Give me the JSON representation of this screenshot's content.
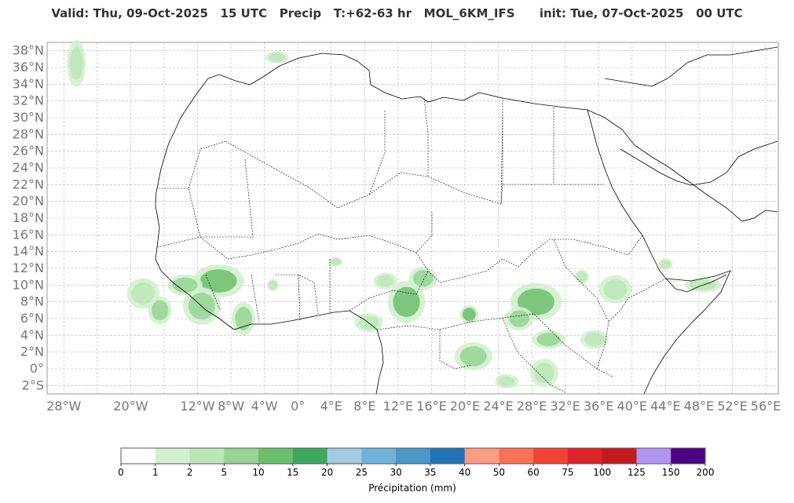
{
  "title": "Valid: Thu, 09-Oct-2025   15 UTC   Precip   T:+62-63 hr   MOL_6KM_IFS      init: Tue, 07-Oct-2025   00 UTC",
  "map": {
    "lat_labels": [
      "38°N",
      "36°N",
      "34°N",
      "32°N",
      "30°N",
      "28°N",
      "26°N",
      "24°N",
      "22°N",
      "20°N",
      "18°N",
      "16°N",
      "14°N",
      "12°N",
      "10°N",
      "8°N",
      "6°N",
      "4°N",
      "2°N",
      "0°",
      "2°S"
    ],
    "lon_labels": [
      "28°W",
      "20°W",
      "12°W",
      "8°W",
      "4°W",
      "0°",
      "4°E",
      "8°E",
      "12°E",
      "16°E",
      "20°E",
      "24°E",
      "28°E",
      "32°E",
      "36°E",
      "40°E",
      "44°E",
      "48°E",
      "52°E",
      "56°E"
    ],
    "lat_values": [
      38,
      36,
      34,
      32,
      30,
      28,
      26,
      24,
      22,
      20,
      18,
      16,
      14,
      12,
      10,
      8,
      6,
      4,
      2,
      0,
      -2
    ],
    "lon_values": [
      -28,
      -20,
      -12,
      -8,
      -4,
      0,
      4,
      8,
      12,
      16,
      20,
      24,
      28,
      32,
      36,
      40,
      44,
      48,
      52,
      56
    ],
    "extent": {
      "lon_min": -30,
      "lon_max": 57.5,
      "lat_min": -3,
      "lat_max": 39
    },
    "grid": true
  },
  "colorbar": {
    "label": "Précipitation (mm)",
    "ticks": [
      "0",
      "1",
      "2",
      "5",
      "10",
      "15",
      "20",
      "25",
      "30",
      "35",
      "40",
      "50",
      "60",
      "75",
      "100",
      "125",
      "150",
      "200"
    ],
    "colors": [
      "#ffffff",
      "#d2f0ce",
      "#bde6b7",
      "#98d493",
      "#6cbf6d",
      "#3fa75e",
      "#a2cbe3",
      "#72b1d8",
      "#4a97c8",
      "#2372b6",
      "#fc9c82",
      "#fa7356",
      "#f14435",
      "#d9252a",
      "#c01b1f",
      "#b093f2",
      "#4c0083"
    ]
  },
  "legend_levels": [
    0,
    1,
    2,
    5,
    10,
    15,
    20,
    25,
    30,
    35,
    40,
    50,
    60,
    75,
    100,
    125,
    150,
    200
  ],
  "precip_areas": [
    {
      "lon": -9.5,
      "lat": 10.5,
      "rlon": 2.2,
      "rlat": 1.4,
      "level": 10
    },
    {
      "lon": -11.5,
      "lat": 7.5,
      "rlon": 1.6,
      "rlat": 1.6,
      "level": 5
    },
    {
      "lon": -13.5,
      "lat": 10.0,
      "rlon": 1.5,
      "rlat": 0.9,
      "level": 5
    },
    {
      "lon": -18.5,
      "lat": 9.0,
      "rlon": 1.4,
      "rlat": 1.3,
      "level": 2
    },
    {
      "lon": -16.5,
      "lat": 7.0,
      "rlon": 1.0,
      "rlat": 1.2,
      "level": 5
    },
    {
      "lon": -6.5,
      "lat": 6.0,
      "rlon": 1.0,
      "rlat": 1.4,
      "level": 5
    },
    {
      "lon": -26.5,
      "lat": 36.5,
      "rlon": 0.8,
      "rlat": 2.0,
      "level": 2
    },
    {
      "lon": -2.5,
      "lat": 37.2,
      "rlon": 1.0,
      "rlat": 0.5,
      "level": 2
    },
    {
      "lon": 8.5,
      "lat": 5.5,
      "rlon": 1.2,
      "rlat": 0.8,
      "level": 2
    },
    {
      "lon": 13.0,
      "lat": 8.0,
      "rlon": 1.6,
      "rlat": 1.8,
      "level": 10
    },
    {
      "lon": 15.0,
      "lat": 10.8,
      "rlon": 1.2,
      "rlat": 1.0,
      "level": 5
    },
    {
      "lon": 10.5,
      "lat": 10.5,
      "rlon": 1.0,
      "rlat": 0.7,
      "level": 2
    },
    {
      "lon": 20.5,
      "lat": 6.5,
      "rlon": 0.8,
      "rlat": 0.8,
      "level": 10
    },
    {
      "lon": 28.5,
      "lat": 8.0,
      "rlon": 2.2,
      "rlat": 1.6,
      "level": 10
    },
    {
      "lon": 26.5,
      "lat": 6.0,
      "rlon": 1.2,
      "rlat": 1.0,
      "level": 5
    },
    {
      "lon": 30.0,
      "lat": 3.5,
      "rlon": 1.4,
      "rlat": 0.8,
      "level": 5
    },
    {
      "lon": 21.0,
      "lat": 1.5,
      "rlon": 1.6,
      "rlat": 1.2,
      "level": 5
    },
    {
      "lon": 29.5,
      "lat": -0.5,
      "rlon": 1.2,
      "rlat": 1.2,
      "level": 2
    },
    {
      "lon": 25.0,
      "lat": -1.5,
      "rlon": 1.0,
      "rlat": 0.6,
      "level": 2
    },
    {
      "lon": 38.0,
      "lat": 9.5,
      "rlon": 1.4,
      "rlat": 1.2,
      "level": 2
    },
    {
      "lon": 34.0,
      "lat": 11.0,
      "rlon": 0.6,
      "rlat": 0.6,
      "level": 2
    },
    {
      "lon": 48.5,
      "lat": 10.0,
      "rlon": 1.6,
      "rlat": 0.6,
      "level": 2
    },
    {
      "lon": 44.0,
      "lat": 12.5,
      "rlon": 0.6,
      "rlat": 0.5,
      "level": 2
    },
    {
      "lon": 35.5,
      "lat": 3.5,
      "rlon": 1.2,
      "rlat": 0.8,
      "level": 2
    },
    {
      "lon": 4.5,
      "lat": 12.8,
      "rlon": 0.6,
      "rlat": 0.4,
      "level": 2
    },
    {
      "lon": -3.0,
      "lat": 10.0,
      "rlon": 0.5,
      "rlat": 0.5,
      "level": 2
    }
  ]
}
